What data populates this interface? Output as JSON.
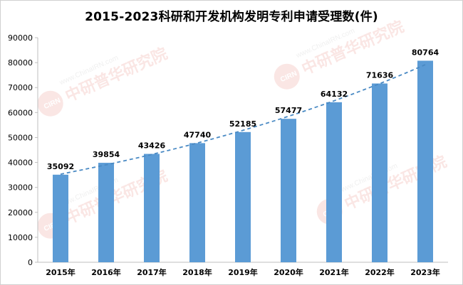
{
  "chart_data": {
    "type": "bar",
    "title": "2015-2023科研和开发机构发明专利申请受理数(件)",
    "categories": [
      "2015年",
      "2016年",
      "2017年",
      "2018年",
      "2019年",
      "2020年",
      "2021年",
      "2022年",
      "2023年"
    ],
    "values": [
      35092,
      39854,
      43426,
      47740,
      52185,
      57477,
      64132,
      71636,
      80764
    ],
    "ylim": [
      0,
      90000
    ],
    "yticks": [
      0,
      10000,
      20000,
      30000,
      40000,
      50000,
      60000,
      70000,
      80000,
      90000
    ],
    "xlabel": "",
    "ylabel": "",
    "grid": false,
    "legend": "none",
    "trendline": "exponential-dashed",
    "colors": {
      "bar": "#5B9BD5",
      "trendline": "#4A8AC4",
      "text": "#000000",
      "axis": "#bfbfbf",
      "watermark_red": "#e04a3a",
      "watermark_gray": "#888888"
    }
  },
  "watermark": {
    "url_text": "www.ChinaIRN.com",
    "brand_text": "中研普华研究院",
    "logo_text": "CIRN"
  }
}
